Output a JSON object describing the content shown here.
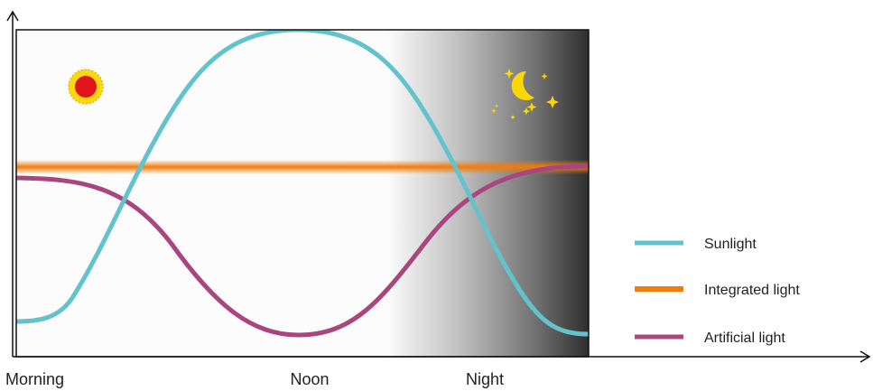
{
  "x_labels": {
    "morning": "Morning",
    "noon": "Noon",
    "night": "Night"
  },
  "legend": {
    "sunlight": "Sunlight",
    "integrated": "Integrated light",
    "artificial": "Artificial light"
  },
  "icons": {
    "sun": "sun-icon",
    "moon": "crescent-moon-icon",
    "stars": "star-icon"
  },
  "colors": {
    "sunlight": "#62c3cd",
    "integrated": "#f07d0c",
    "artificial": "#a8467d",
    "night_shade": "#333333",
    "sun_core": "#e0151c",
    "sun_ring": "#ffd70f",
    "moon": "#ffd700"
  }
}
